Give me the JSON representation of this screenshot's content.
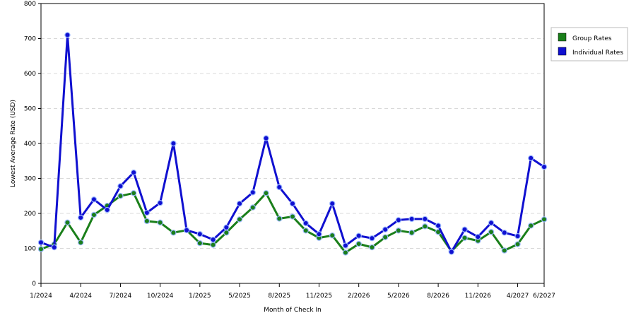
{
  "chart_data": {
    "type": "line",
    "xlabel": "Month of Check In",
    "ylabel": "Lowest Average Rate (USD)",
    "ylim": [
      0,
      800
    ],
    "yticks": [
      0,
      100,
      200,
      300,
      400,
      500,
      600,
      700,
      800
    ],
    "grid": "horizontal dashed",
    "legend_position": "right",
    "x_tick_labels": [
      "1/2024",
      "4/2024",
      "7/2024",
      "10/2024",
      "1/2025",
      "5/2025",
      "8/2025",
      "11/2025",
      "2/2026",
      "5/2026",
      "8/2026",
      "11/2026",
      "4/2027",
      "6/2027"
    ],
    "x_tick_indices": [
      0,
      3,
      6,
      9,
      12,
      15,
      18,
      21,
      24,
      27,
      30,
      33,
      36,
      38
    ],
    "series": [
      {
        "name": "Group Rates",
        "color": "#1a7f1a",
        "values": [
          98,
          112,
          174,
          117,
          196,
          222,
          250,
          258,
          178,
          174,
          145,
          152,
          115,
          110,
          145,
          183,
          217,
          258,
          185,
          191,
          151,
          130,
          137,
          88,
          113,
          103,
          132,
          151,
          145,
          163,
          147,
          92,
          130,
          122,
          147,
          94,
          112,
          165,
          183
        ]
      },
      {
        "name": "Individual Rates",
        "color": "#1010d0",
        "values": [
          117,
          103,
          710,
          188,
          240,
          210,
          278,
          317,
          202,
          230,
          400,
          152,
          141,
          125,
          160,
          228,
          260,
          415,
          275,
          228,
          172,
          141,
          228,
          108,
          136,
          129,
          154,
          181,
          184,
          184,
          165,
          90,
          154,
          133,
          173,
          145,
          135,
          358,
          333
        ]
      }
    ]
  }
}
